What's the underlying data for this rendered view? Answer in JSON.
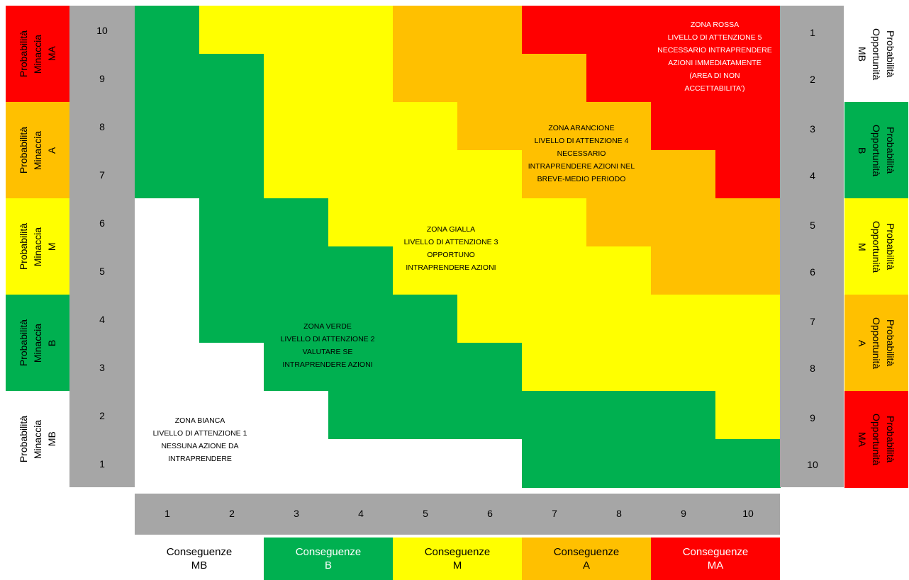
{
  "colors": {
    "white": "#ffffff",
    "green": "#00b050",
    "yellow": "#ffff00",
    "orange": "#ffc000",
    "red": "#ff0000",
    "gray": "#a6a6a6"
  },
  "grid": [
    [
      "G",
      "Y",
      "Y",
      "Y",
      "O",
      "O",
      "R",
      "R",
      "R",
      "R"
    ],
    [
      "G",
      "G",
      "Y",
      "Y",
      "O",
      "O",
      "O",
      "R",
      "R",
      "R"
    ],
    [
      "G",
      "G",
      "Y",
      "Y",
      "Y",
      "O",
      "O",
      "O",
      "R",
      "R"
    ],
    [
      "G",
      "G",
      "Y",
      "Y",
      "Y",
      "Y",
      "O",
      "O",
      "O",
      "R"
    ],
    [
      "W",
      "G",
      "G",
      "Y",
      "Y",
      "Y",
      "Y",
      "O",
      "O",
      "O"
    ],
    [
      "W",
      "G",
      "G",
      "G",
      "Y",
      "Y",
      "Y",
      "Y",
      "O",
      "O"
    ],
    [
      "W",
      "G",
      "G",
      "G",
      "G",
      "Y",
      "Y",
      "Y",
      "Y",
      "Y"
    ],
    [
      "W",
      "W",
      "G",
      "G",
      "G",
      "G",
      "Y",
      "Y",
      "Y",
      "Y"
    ],
    [
      "W",
      "W",
      "W",
      "G",
      "G",
      "G",
      "G",
      "G",
      "G",
      "Y"
    ],
    [
      "W",
      "W",
      "W",
      "W",
      "W",
      "W",
      "G",
      "G",
      "G",
      "G"
    ]
  ],
  "left_scale": [
    "10",
    "9",
    "8",
    "7",
    "6",
    "5",
    "4",
    "3",
    "2",
    "1"
  ],
  "right_scale": [
    "1",
    "2",
    "3",
    "4",
    "5",
    "6",
    "7",
    "8",
    "9",
    "10"
  ],
  "x_scale": [
    "1",
    "2",
    "3",
    "4",
    "5",
    "6",
    "7",
    "8",
    "9",
    "10"
  ],
  "left_labels": [
    {
      "text": "Probabilità\nMinaccia\nMA",
      "color": "red"
    },
    {
      "text": "Probabilità\nMinaccia\nA",
      "color": "orange"
    },
    {
      "text": "Probabilità\nMinaccia\nM",
      "color": "yellow"
    },
    {
      "text": "Probabilità\nMinaccia\nB",
      "color": "green"
    },
    {
      "text": "Probabilità\nMinaccia\nMB",
      "color": "white"
    }
  ],
  "right_labels": [
    {
      "text": "Probabilità\nOpportunità\nMB",
      "color": "white"
    },
    {
      "text": "Probabilità\nOpportunità\nB",
      "color": "green"
    },
    {
      "text": "Probabilità\nOpportunità\nM",
      "color": "yellow"
    },
    {
      "text": "Probabilità\nOpportunità\nA",
      "color": "orange"
    },
    {
      "text": "Probabilità\nOpportunità\nMA",
      "color": "red"
    }
  ],
  "bottom_labels": [
    {
      "text": "Conseguenze\nMB",
      "color": "white"
    },
    {
      "text": "Conseguenze\nB",
      "color": "green"
    },
    {
      "text": "Conseguenze\nM",
      "color": "yellow"
    },
    {
      "text": "Conseguenze\nA",
      "color": "orange"
    },
    {
      "text": "Conseguenze\nMA",
      "color": "red"
    }
  ],
  "zones": {
    "red": "ZONA ROSSA\nLIVELLO DI ATTENZIONE 5\nNECESSARIO INTRAPRENDERE\nAZIONI IMMEDIATAMENTE\n(AREA DI NON\nACCETTABILITA')",
    "orange": "ZONA ARANCIONE\nLIVELLO DI ATTENZIONE 4\nNECESSARIO\nINTRAPRENDERE AZIONI NEL\nBREVE-MEDIO PERIODO",
    "yellow": "ZONA GIALLA\nLIVELLO DI ATTENZIONE 3\nOPPORTUNO\nINTRAPRENDERE AZIONI",
    "green": "ZONA VERDE\nLIVELLO DI ATTENZIONE 2\nVALUTARE SE\nINTRAPRENDERE AZIONI",
    "white": "ZONA BIANCA\nLIVELLO DI ATTENZIONE 1\nNESSUNA AZIONE DA\nINTRAPRENDERE"
  }
}
